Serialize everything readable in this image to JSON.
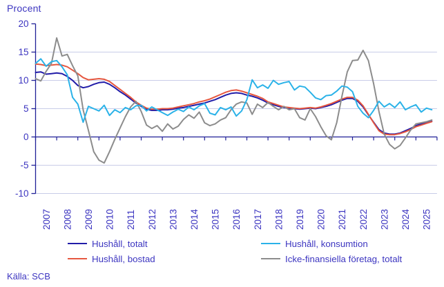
{
  "title": "Procent",
  "source": "Källa: SCB",
  "colors": {
    "text": "#3c35c0",
    "grid": "#c8cce8",
    "axis": "#1e1e96",
    "background": "#ffffff"
  },
  "chart_data": {
    "type": "line",
    "title": "Procent",
    "ylabel": "Procent",
    "ylim": [
      -10,
      20
    ],
    "yticks": [
      20,
      15,
      10,
      5,
      0,
      -5,
      -10
    ],
    "xlim": [
      2007,
      2026
    ],
    "xticklabels": [
      "2007",
      "2008",
      "2009",
      "2010",
      "2011",
      "2012",
      "2013",
      "2014",
      "2015",
      "2016",
      "2017",
      "2018",
      "2019",
      "2020",
      "2021",
      "2022",
      "2023",
      "2024",
      "2025"
    ],
    "grid": true,
    "zero_line": true,
    "legend_position": "bottom",
    "x": [
      2007.0,
      2007.25,
      2007.5,
      2007.75,
      2008.0,
      2008.25,
      2008.5,
      2008.75,
      2009.0,
      2009.25,
      2009.5,
      2009.75,
      2010.0,
      2010.25,
      2010.5,
      2010.75,
      2011.0,
      2011.25,
      2011.5,
      2011.75,
      2012.0,
      2012.25,
      2012.5,
      2012.75,
      2013.0,
      2013.25,
      2013.5,
      2013.75,
      2014.0,
      2014.25,
      2014.5,
      2014.75,
      2015.0,
      2015.25,
      2015.5,
      2015.75,
      2016.0,
      2016.25,
      2016.5,
      2016.75,
      2017.0,
      2017.25,
      2017.5,
      2017.75,
      2018.0,
      2018.25,
      2018.5,
      2018.75,
      2019.0,
      2019.25,
      2019.5,
      2019.75,
      2020.0,
      2020.25,
      2020.5,
      2020.75,
      2021.0,
      2021.25,
      2021.5,
      2021.75,
      2022.0,
      2022.25,
      2022.5,
      2022.75,
      2023.0,
      2023.25,
      2023.5,
      2023.75,
      2024.0,
      2024.25,
      2024.5,
      2024.75,
      2025.0,
      2025.25,
      2025.5,
      2025.75
    ],
    "series": [
      {
        "id": "hushall-totalt",
        "name": "Hushåll, totalt",
        "color": "#211ca8",
        "values": [
          11.4,
          11.5,
          11.1,
          11.2,
          11.3,
          11.2,
          10.7,
          10.0,
          9.1,
          8.7,
          8.9,
          9.3,
          9.6,
          9.7,
          9.3,
          8.7,
          8.0,
          7.4,
          6.7,
          6.0,
          5.4,
          4.9,
          4.7,
          4.7,
          4.8,
          4.8,
          4.9,
          5.1,
          5.2,
          5.4,
          5.6,
          5.8,
          6.0,
          6.3,
          6.6,
          7.0,
          7.4,
          7.7,
          7.8,
          7.7,
          7.4,
          7.2,
          6.9,
          6.5,
          6.0,
          5.7,
          5.4,
          5.2,
          5.1,
          5.0,
          4.9,
          5.0,
          5.1,
          5.0,
          5.2,
          5.4,
          5.7,
          6.1,
          6.5,
          6.8,
          6.8,
          6.3,
          5.3,
          3.9,
          2.6,
          1.3,
          0.7,
          0.5,
          0.5,
          0.7,
          1.1,
          1.5,
          2.0,
          2.3,
          2.6,
          2.8
        ]
      },
      {
        "id": "hushall-bostad",
        "name": "Hushåll, bostad",
        "color": "#e6573f",
        "values": [
          12.9,
          12.8,
          12.6,
          12.7,
          12.8,
          12.7,
          12.4,
          11.8,
          11.2,
          10.5,
          10.1,
          10.2,
          10.3,
          10.2,
          9.8,
          9.1,
          8.4,
          7.7,
          7.0,
          6.2,
          5.6,
          5.1,
          4.9,
          4.9,
          5.0,
          5.0,
          5.1,
          5.3,
          5.5,
          5.7,
          5.9,
          6.2,
          6.4,
          6.7,
          7.1,
          7.5,
          7.9,
          8.2,
          8.3,
          8.1,
          7.8,
          7.5,
          7.2,
          6.8,
          6.2,
          5.9,
          5.6,
          5.3,
          5.2,
          5.1,
          5.0,
          5.1,
          5.2,
          5.1,
          5.3,
          5.6,
          5.9,
          6.3,
          6.7,
          7.0,
          7.0,
          6.5,
          5.5,
          4.0,
          2.5,
          1.1,
          0.5,
          0.4,
          0.4,
          0.6,
          0.9,
          1.3,
          1.8,
          2.1,
          2.4,
          2.7
        ]
      },
      {
        "id": "hushall-konsumtion",
        "name": "Hushåll, konsumtion",
        "color": "#2ab2e8",
        "values": [
          13.0,
          13.8,
          12.5,
          13.3,
          13.5,
          12.4,
          11.0,
          7.0,
          5.8,
          2.6,
          5.4,
          5.0,
          4.6,
          5.6,
          3.8,
          4.8,
          4.3,
          5.2,
          4.8,
          5.5,
          5.6,
          4.6,
          5.3,
          4.8,
          4.3,
          3.8,
          4.4,
          4.9,
          4.5,
          5.3,
          4.8,
          5.5,
          5.9,
          4.2,
          3.9,
          5.2,
          4.8,
          5.3,
          3.7,
          4.6,
          6.6,
          10.1,
          8.7,
          9.2,
          8.6,
          10.0,
          9.3,
          9.6,
          9.8,
          8.3,
          9.0,
          8.8,
          7.9,
          6.9,
          6.6,
          7.3,
          7.4,
          8.1,
          9.0,
          8.8,
          8.0,
          5.4,
          4.2,
          3.4,
          4.7,
          6.3,
          5.3,
          5.9,
          5.2,
          6.2,
          4.8,
          5.3,
          5.7,
          4.4,
          5.1,
          4.8
        ]
      },
      {
        "id": "icke-finansiella-foretag-totalt",
        "name": "Icke-finansiella företag, totalt",
        "color": "#8c8c8c",
        "values": [
          10.3,
          9.9,
          11.6,
          13.0,
          17.5,
          14.3,
          14.6,
          12.6,
          10.8,
          4.8,
          1.2,
          -2.6,
          -4.1,
          -4.6,
          -2.6,
          -0.4,
          1.6,
          3.6,
          5.3,
          6.3,
          4.5,
          2.1,
          1.5,
          2.0,
          1.0,
          2.3,
          1.4,
          1.9,
          3.1,
          3.9,
          3.3,
          4.4,
          2.5,
          2.0,
          2.3,
          3.0,
          3.4,
          4.8,
          5.8,
          6.2,
          6.0,
          4.0,
          5.8,
          5.2,
          6.1,
          5.4,
          4.8,
          5.4,
          4.8,
          5.0,
          3.4,
          3.0,
          5.0,
          3.6,
          1.8,
          0.2,
          -0.5,
          2.5,
          7.2,
          11.5,
          13.5,
          13.6,
          15.3,
          13.5,
          9.4,
          4.5,
          0.5,
          -1.3,
          -2.1,
          -1.5,
          -0.2,
          1.2,
          2.3,
          2.5,
          2.7,
          3.0
        ]
      }
    ]
  },
  "legend": {
    "order_note": "left column: totalt, bostad; right column: konsumtion, icke-finansiella"
  }
}
